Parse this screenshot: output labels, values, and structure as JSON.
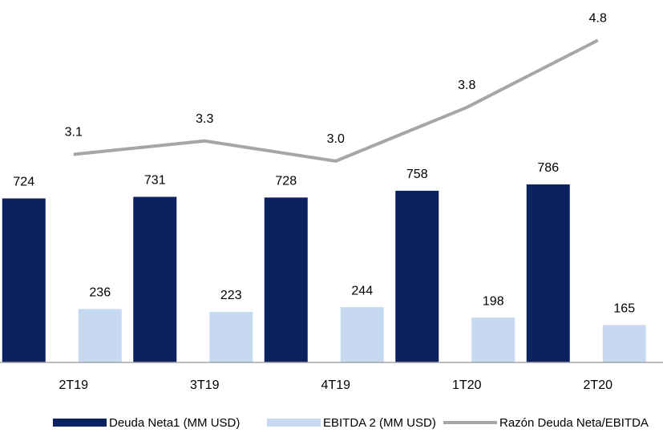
{
  "chart_data": {
    "type": "bar_line",
    "categories": [
      "2T19",
      "3T19",
      "4T19",
      "1T20",
      "2T20"
    ],
    "series": [
      {
        "name": "Deuda Neta1 (MM USD)",
        "color": "#0b2160",
        "values": [
          724,
          731,
          728,
          758,
          786
        ]
      },
      {
        "name": "EBITDA 2 (MM USD)",
        "color": "#c6d9f1",
        "values": [
          236,
          223,
          244,
          198,
          165
        ]
      },
      {
        "name": "Razón Deuda Neta/EBITDA",
        "color": "#a6a6a6",
        "axis": "y2",
        "values": [
          3.1,
          3.3,
          3.0,
          3.8,
          4.8
        ],
        "value_labels": [
          "3.1",
          "3.3",
          "3.0",
          "3.8",
          "4.8"
        ]
      }
    ],
    "ylim": [
      0,
      1600
    ],
    "y2lim": [
      0,
      5.4
    ],
    "legend": "bottom"
  }
}
